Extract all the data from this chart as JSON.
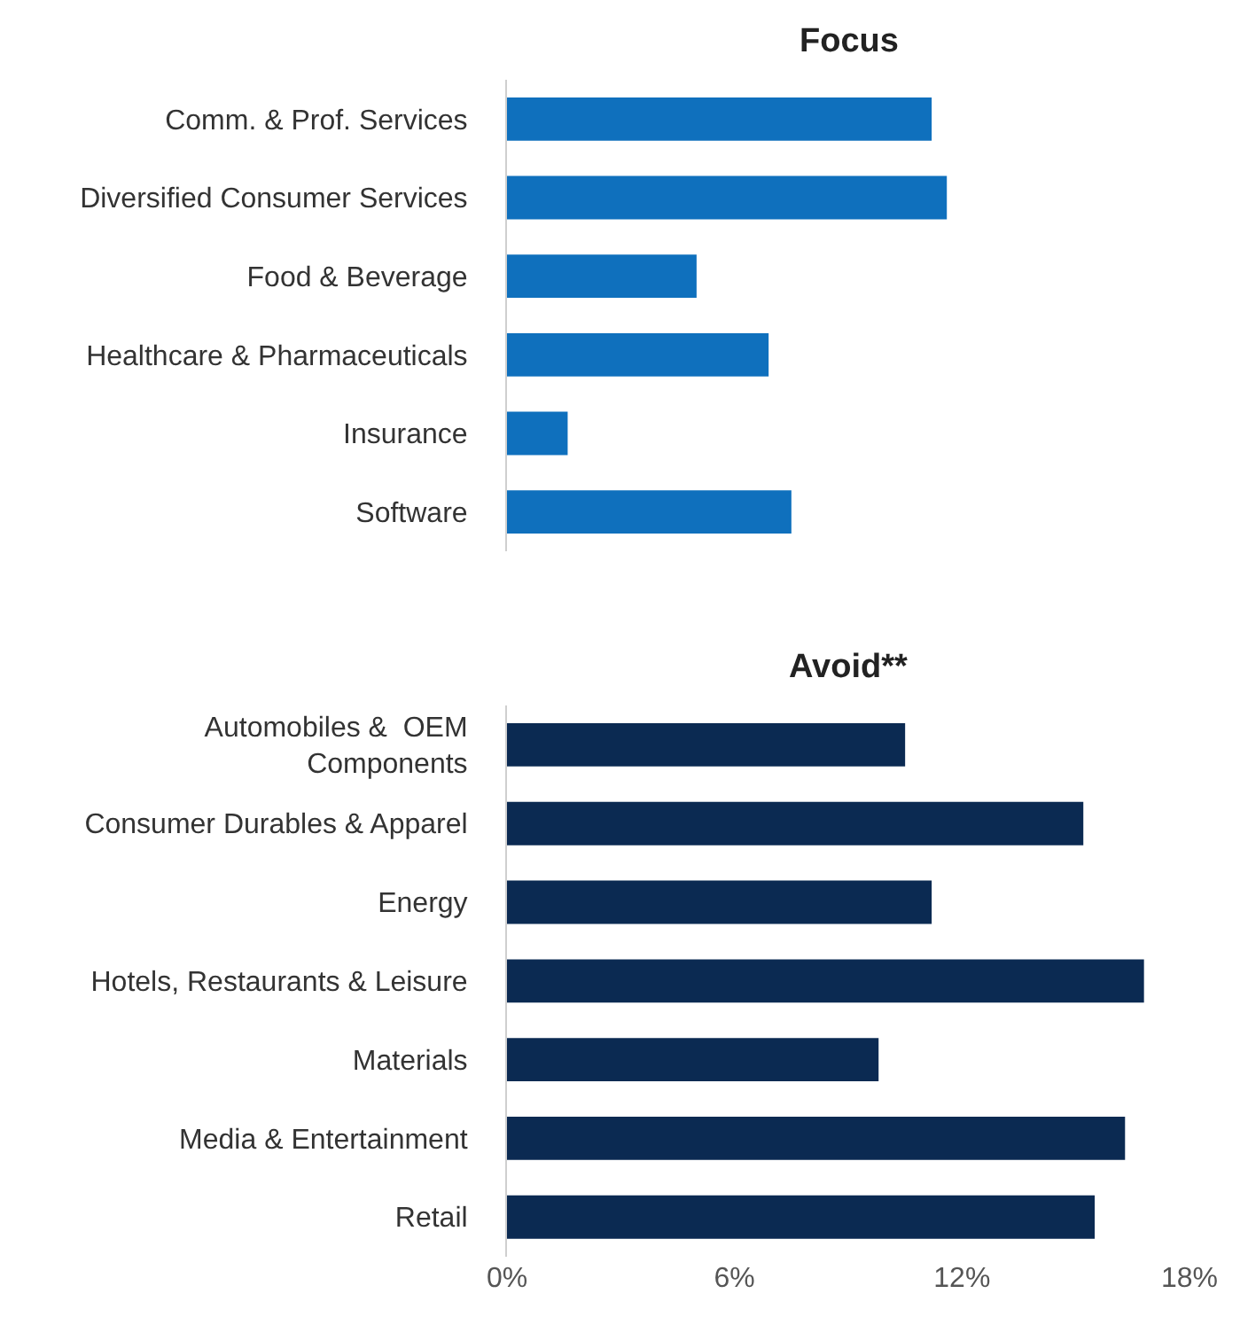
{
  "chart_data": [
    {
      "type": "bar",
      "orientation": "horizontal",
      "title": "Focus",
      "categories": [
        "Comm. & Prof. Services",
        "Diversified Consumer Services",
        "Food & Beverage",
        "Healthcare & Pharmaceuticals",
        "Insurance",
        "Software"
      ],
      "series": [
        {
          "color": "#0f70bd",
          "values": [
            11.2,
            11.6,
            5.0,
            6.9,
            1.6,
            7.5
          ]
        }
      ],
      "xlim": [
        0,
        18
      ],
      "tick_labels": "y"
    },
    {
      "type": "bar",
      "orientation": "horizontal",
      "title": "Avoid**",
      "categories": [
        "Automobiles &  OEM\nComponents",
        "Consumer Durables & Apparel",
        "Energy",
        "Hotels, Restaurants & Leisure",
        "Materials",
        "Media & Entertainment",
        "Retail"
      ],
      "series": [
        {
          "color": "#0b2a52",
          "values": [
            10.5,
            15.2,
            11.2,
            16.8,
            9.8,
            16.3,
            15.5
          ]
        }
      ],
      "xlim": [
        0,
        18
      ],
      "xticks": [
        {
          "value": 0,
          "label": "0%"
        },
        {
          "value": 6,
          "label": "6%"
        },
        {
          "value": 12,
          "label": "12%"
        },
        {
          "value": 18,
          "label": "18%"
        }
      ]
    }
  ]
}
